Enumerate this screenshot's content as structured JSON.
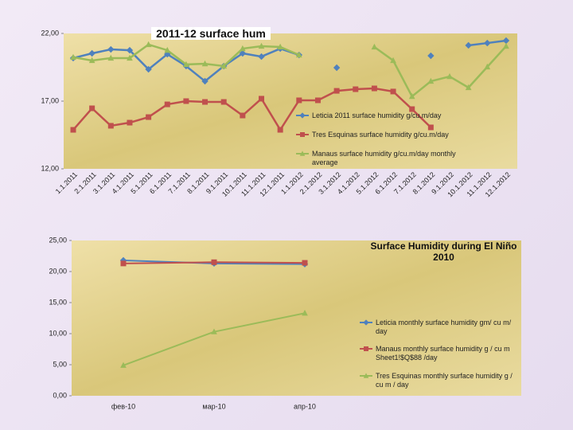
{
  "chart_data": [
    {
      "type": "line",
      "title": "2011-12  surface hum",
      "categories": [
        "1.1.2011",
        "2.1.2011",
        "3.1.2011",
        "4.1.2011",
        "5.1.2011",
        "6.1.2011",
        "7.1.2011",
        "8.1.2011",
        "9.1.2011",
        "10.1.2011",
        "11.1.2011",
        "12.1.2011",
        "1.1.2012",
        "2.1.2012",
        "3.1.2012",
        "4.1.2012",
        "5.1.2012",
        "6.1.2012",
        "7.1.2012",
        "8.1.2012",
        "9.1.2012",
        "10.1.2012",
        "11.1.2012",
        "12.1.2012"
      ],
      "series": [
        {
          "name": "Leticia 2011 surface humidity g/cu.m/day",
          "color": "#4f81bd",
          "marker": "diamond",
          "values": [
            20.18,
            20.53,
            20.82,
            20.76,
            19.35,
            20.47,
            19.59,
            18.47,
            19.59,
            20.53,
            20.29,
            20.88,
            20.41,
            null,
            19.47,
            null,
            null,
            null,
            null,
            20.35,
            null,
            21.12,
            21.29,
            21.47
          ]
        },
        {
          "name": "Tres Esquinas surface humidity g/cu.m/day",
          "color": "#c0504d",
          "marker": "square",
          "values": [
            14.88,
            16.47,
            15.18,
            15.41,
            15.82,
            16.76,
            17.0,
            16.94,
            16.94,
            15.94,
            17.18,
            14.88,
            17.06,
            17.06,
            17.76,
            17.88,
            17.94,
            17.71,
            16.41,
            15.06,
            null,
            null,
            null,
            null
          ]
        },
        {
          "name": "Manaus surface humidity g/cu.m/day monthly average",
          "color": "#9bbb59",
          "marker": "triangle",
          "values": [
            20.24,
            20.0,
            20.18,
            20.18,
            21.18,
            20.76,
            19.71,
            19.76,
            19.59,
            20.88,
            21.06,
            21.0,
            20.41,
            null,
            null,
            null,
            21.0,
            20.0,
            17.35,
            18.47,
            18.82,
            18.0,
            19.53,
            21.06
          ]
        }
      ],
      "ylim": [
        12,
        22
      ],
      "yticks": [
        {
          "value": 12,
          "label": "12,00"
        },
        {
          "value": 17,
          "label": "17,00"
        },
        {
          "value": 22,
          "label": "22,00"
        }
      ],
      "legend": "right"
    },
    {
      "type": "line",
      "title": "Surface Humidity during El Niño 2010",
      "categories": [
        "фев-10",
        "мар-10",
        "апр-10"
      ],
      "series": [
        {
          "name": "Leticia monthly surface humidity gm/ cu m/ day",
          "color": "#4f81bd",
          "marker": "diamond",
          "values": [
            21.8,
            21.3,
            21.2
          ]
        },
        {
          "name": "Manaus monthly surface humidity g / cu m Sheet1!$Q$88 /day",
          "color": "#c0504d",
          "marker": "square",
          "values": [
            21.3,
            21.5,
            21.4
          ]
        },
        {
          "name": "Tres Esquinas monthly surface humidity g / cu m / day",
          "color": "#9bbb59",
          "marker": "triangle",
          "values": [
            4.9,
            10.3,
            13.3
          ]
        }
      ],
      "ylim": [
        0,
        25
      ],
      "yticks": [
        {
          "value": 0,
          "label": "0,00"
        },
        {
          "value": 5,
          "label": "5,00"
        },
        {
          "value": 10,
          "label": "10,00"
        },
        {
          "value": 15,
          "label": "15,00"
        },
        {
          "value": 20,
          "label": "20,00"
        },
        {
          "value": 25,
          "label": "25,00"
        }
      ],
      "legend": "right"
    }
  ]
}
